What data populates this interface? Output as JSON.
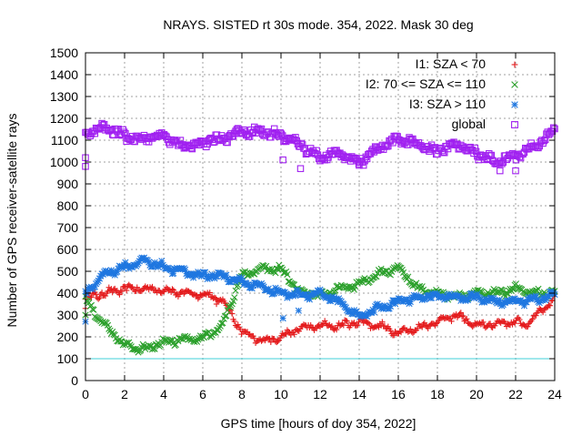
{
  "chart_data": {
    "type": "scatter",
    "title": "NRAYS. SISTED rt 30s mode. 354, 2022. Mask 30 deg",
    "xlabel": "GPS time [hours of doy 354, 2022]",
    "ylabel": "Number of GPS receiver-satellite rays",
    "xlim": [
      0,
      24
    ],
    "ylim": [
      0,
      1500
    ],
    "xticks": [
      "0",
      "2",
      "4",
      "6",
      "8",
      "10",
      "12",
      "14",
      "16",
      "18",
      "20",
      "22",
      "24"
    ],
    "yticks": [
      "0",
      "100",
      "200",
      "300",
      "400",
      "500",
      "600",
      "700",
      "800",
      "900",
      "1000",
      "1100",
      "1200",
      "1300",
      "1400",
      "1500"
    ],
    "grid": true,
    "legend_position": "top-right",
    "reference_line": {
      "y": 100,
      "color": "#40d0d8"
    },
    "series": [
      {
        "name": "I1: SZA < 70",
        "marker": "plus",
        "color": "#e41a1c",
        "x": [
          0,
          1,
          2,
          3,
          4,
          5,
          6,
          7,
          7.5,
          8,
          9,
          10,
          11,
          12,
          13,
          14,
          15,
          16,
          17,
          18,
          19,
          20,
          21,
          22,
          22.5,
          23,
          23.5,
          24
        ],
        "y": [
          380,
          400,
          420,
          420,
          415,
          400,
          395,
          370,
          300,
          220,
          180,
          200,
          240,
          250,
          250,
          270,
          250,
          220,
          240,
          270,
          300,
          250,
          260,
          270,
          250,
          300,
          330,
          390
        ]
      },
      {
        "name": "I2: 70 <= SZA <= 110",
        "marker": "x",
        "color": "#2ca02c",
        "x": [
          0,
          1,
          2,
          3,
          4,
          5,
          6,
          7,
          7.5,
          8,
          9,
          10,
          11,
          12,
          13,
          14,
          15,
          16,
          17,
          18,
          19,
          20,
          21,
          22,
          23,
          24
        ],
        "y": [
          370,
          250,
          160,
          145,
          180,
          185,
          195,
          250,
          370,
          480,
          510,
          510,
          400,
          390,
          420,
          440,
          490,
          520,
          420,
          400,
          385,
          400,
          400,
          420,
          400,
          400
        ]
      },
      {
        "name": "I3: SZA > 110",
        "marker": "asterisk",
        "color": "#1f77e0",
        "x": [
          0,
          1,
          2,
          3,
          4,
          5,
          6,
          7,
          8,
          9,
          10,
          11,
          12,
          13,
          14,
          15,
          16,
          17,
          18,
          19,
          20,
          21,
          22,
          23,
          24
        ],
        "y": [
          400,
          490,
          520,
          550,
          520,
          500,
          480,
          480,
          450,
          430,
          400,
          395,
          395,
          360,
          290,
          330,
          360,
          380,
          390,
          380,
          380,
          360,
          360,
          370,
          390
        ]
      },
      {
        "name": "global",
        "marker": "open-square",
        "color": "#a020f0",
        "x": [
          0,
          0.5,
          1,
          1.5,
          2,
          2.5,
          3,
          4,
          5,
          6,
          7,
          8,
          9,
          10,
          10.5,
          11,
          12,
          13,
          14,
          15,
          16,
          17,
          18,
          19,
          20,
          21,
          22,
          22.5,
          23,
          23.5,
          24
        ],
        "y": [
          1140,
          1140,
          1160,
          1140,
          1120,
          1110,
          1110,
          1120,
          1070,
          1090,
          1110,
          1140,
          1140,
          1120,
          1100,
          1080,
          1020,
          1040,
          1000,
          1060,
          1110,
          1080,
          1050,
          1080,
          1040,
          1000,
          1030,
          1050,
          1080,
          1100,
          1150
        ]
      }
    ],
    "outliers": {
      "I1: SZA < 70": [
        [
          0,
          330
        ],
        [
          6.7,
          350
        ]
      ],
      "I2: 70 <= SZA <= 110": [
        [
          0,
          300
        ]
      ],
      "I3: SZA > 110": [
        [
          0,
          270
        ],
        [
          10.1,
          285
        ],
        [
          10.9,
          320
        ]
      ],
      "global": [
        [
          0,
          1020
        ],
        [
          0,
          980
        ],
        [
          10.1,
          1010
        ],
        [
          11,
          970
        ],
        [
          14,
          985
        ],
        [
          21.2,
          960
        ],
        [
          22,
          960
        ]
      ]
    }
  }
}
